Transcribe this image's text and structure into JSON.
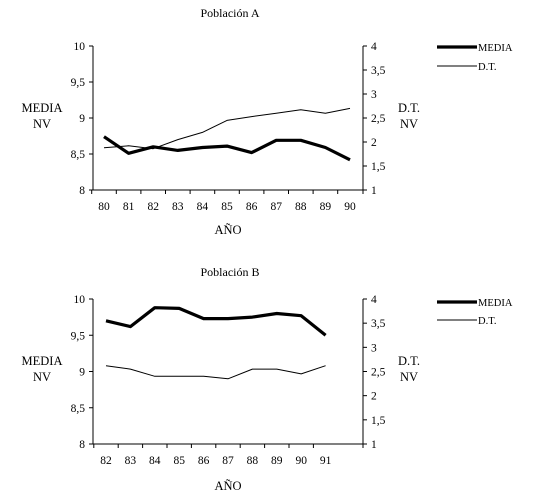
{
  "chart_data": [
    {
      "type": "line",
      "title": "Población A",
      "xlabel": "AÑO",
      "ylabel_left": [
        "MEDIA",
        "NV"
      ],
      "ylabel_right": [
        "D.T.",
        "NV"
      ],
      "categories": [
        "80",
        "81",
        "82",
        "83",
        "84",
        "85",
        "86",
        "87",
        "88",
        "89",
        "90"
      ],
      "ylim_left": [
        8,
        10
      ],
      "yticks_left": [
        "8",
        "8,5",
        "9",
        "9,5",
        "10"
      ],
      "ylim_right": [
        1,
        4
      ],
      "yticks_right": [
        "1",
        "1,5",
        "2",
        "2,5",
        "3",
        "3,5",
        "4"
      ],
      "legend_position": "top-right",
      "grid": false,
      "series": [
        {
          "name": "MEDIA",
          "axis": "left",
          "style": "thick",
          "values": [
            8.74,
            8.51,
            8.6,
            8.55,
            8.59,
            8.61,
            8.52,
            8.69,
            8.69,
            8.59,
            8.42
          ]
        },
        {
          "name": "D.T.",
          "axis": "right",
          "style": "thin",
          "values": [
            1.88,
            1.92,
            1.86,
            2.05,
            2.2,
            2.45,
            2.53,
            2.6,
            2.67,
            2.6,
            2.7
          ]
        }
      ]
    },
    {
      "type": "line",
      "title": "Población B",
      "xlabel": "AÑO",
      "ylabel_left": [
        "MEDIA",
        "NV"
      ],
      "ylabel_right": [
        "D.T.",
        "NV"
      ],
      "categories": [
        "82",
        "83",
        "84",
        "85",
        "86",
        "87",
        "88",
        "89",
        "90",
        "91"
      ],
      "ylim_left": [
        8,
        10
      ],
      "yticks_left": [
        "8",
        "8,5",
        "9",
        "9,5",
        "10"
      ],
      "ylim_right": [
        1,
        4
      ],
      "yticks_right": [
        "1",
        "1,5",
        "2",
        "2,5",
        "3",
        "3,5",
        "4"
      ],
      "legend_position": "top-right",
      "grid": false,
      "series": [
        {
          "name": "MEDIA",
          "axis": "left",
          "style": "thick",
          "values": [
            9.7,
            9.62,
            9.88,
            9.87,
            9.73,
            9.73,
            9.75,
            9.8,
            9.77,
            9.5
          ]
        },
        {
          "name": "D.T.",
          "axis": "right",
          "style": "thin",
          "values": [
            2.62,
            2.55,
            2.4,
            2.4,
            2.4,
            2.35,
            2.55,
            2.55,
            2.45,
            2.62
          ]
        }
      ]
    }
  ]
}
